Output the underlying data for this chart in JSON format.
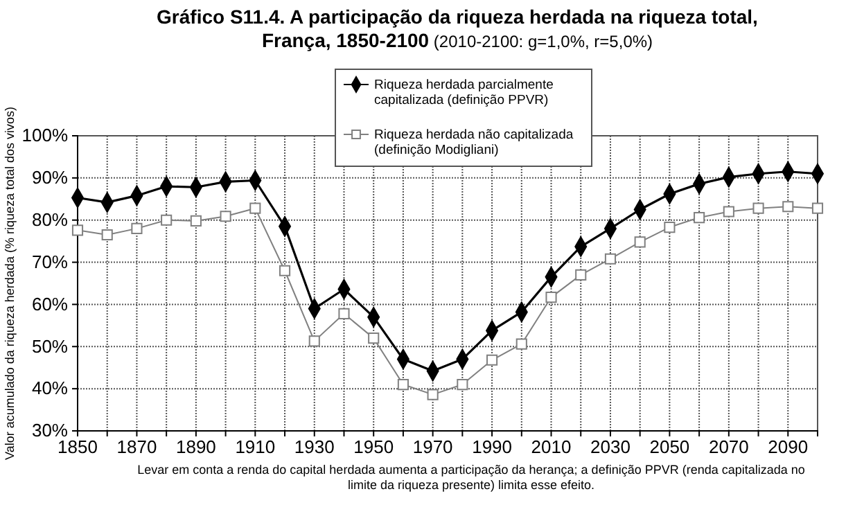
{
  "chart_data": {
    "type": "line",
    "title": "Gráfico S11.4. A participação da riqueza herdada na riqueza total, França, 1850-2100",
    "subtitle": "(2010-2100: g=1,0%, r=5,0%)",
    "ylabel": "Valor acumulado da riqueza herdada (% riqueza total dos vivos)",
    "annotations": [
      "Levar em conta a renda do capital herdada aumenta a participação da herança; a definição PPVR (renda capitalizada no limite da riqueza presente) limita esse efeito."
    ],
    "x": [
      1850,
      1860,
      1870,
      1880,
      1890,
      1900,
      1910,
      1920,
      1930,
      1940,
      1950,
      1960,
      1970,
      1980,
      1990,
      2000,
      2010,
      2020,
      2030,
      2040,
      2050,
      2060,
      2070,
      2080,
      2090,
      2100
    ],
    "series": [
      {
        "name": "Riqueza herdada parcialmente capitalizada (definição PPVR)",
        "color": "#000000",
        "marker": "diamond",
        "values": [
          85.3,
          84.2,
          85.8,
          88,
          87.8,
          89.1,
          89.4,
          78.5,
          59,
          63.6,
          57,
          47,
          44.2,
          47,
          53.8,
          58.2,
          66.5,
          73.7,
          78,
          82.5,
          86.2,
          88.6,
          90.2,
          91,
          91.5,
          91
        ]
      },
      {
        "name": "Riqueza herdada não capitalizada (definição Modigliani)",
        "color": "#808080",
        "marker": "square",
        "values": [
          77.6,
          76.5,
          78,
          80,
          79.8,
          80.9,
          82.8,
          68,
          51.3,
          57.8,
          52,
          41,
          38.6,
          41,
          46.8,
          50.6,
          61.7,
          67,
          70.8,
          74.8,
          78.3,
          80.6,
          82,
          82.8,
          83.2,
          82.8
        ]
      }
    ],
    "xlim": [
      1850,
      2100
    ],
    "xticks": [
      1850,
      {
        "value": 1860,
        "label": null
      },
      1870,
      {
        "value": 1880,
        "label": null
      },
      1890,
      {
        "value": 1900,
        "label": null
      },
      1910,
      {
        "value": 1920,
        "label": null
      },
      1930,
      {
        "value": 1940,
        "label": null
      },
      1950,
      {
        "value": 1960,
        "label": null
      },
      1970,
      {
        "value": 1980,
        "label": null
      },
      1990,
      {
        "value": 2000,
        "label": null
      },
      2010,
      {
        "value": 2020,
        "label": null
      },
      2030,
      {
        "value": 2040,
        "label": null
      },
      2050,
      {
        "value": 2060,
        "label": null
      },
      2070,
      {
        "value": 2080,
        "label": null
      },
      2090,
      {
        "value": 2100,
        "label": null
      }
    ],
    "ylim": [
      30,
      100
    ],
    "yticks": [
      {
        "value": 30,
        "label": "30%"
      },
      {
        "value": 40,
        "label": "40%"
      },
      {
        "value": 50,
        "label": "50%"
      },
      {
        "value": 60,
        "label": "60%"
      },
      {
        "value": 70,
        "label": "70%"
      },
      {
        "value": 80,
        "label": "80%"
      },
      {
        "value": 90,
        "label": "90%"
      },
      {
        "value": 100,
        "label": "100%"
      }
    ],
    "grid": true,
    "legend": "top",
    "line_style": "solid"
  }
}
